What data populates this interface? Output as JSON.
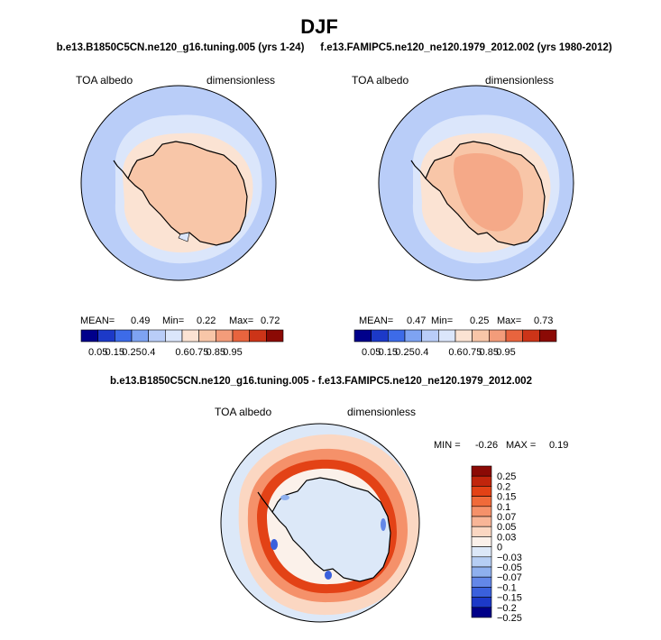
{
  "chart_data": {
    "type": "polar_contour_map",
    "title": "DJF",
    "subplots": [
      {
        "id": "model",
        "title": "b.e13.B1850C5CN.ne120_g16.tuning.005 (yrs 1-24)",
        "variable": "TOA albedo",
        "units": "dimensionless",
        "stats": {
          "mean_label": "MEAN=",
          "mean": "0.49",
          "min_label": "Min=",
          "min": "0.22",
          "max_label": "Max=",
          "max": "0.72"
        },
        "colorbar_ticks": [
          "0.05",
          "0.15",
          "0.25",
          "0.4",
          "0.6",
          "0.75",
          "0.85",
          "0.95"
        ]
      },
      {
        "id": "obs",
        "title": "f.e13.FAMIPC5.ne120_ne120.1979_2012.002 (yrs 1980-2012)",
        "variable": "TOA albedo",
        "units": "dimensionless",
        "stats": {
          "mean_label": "MEAN=",
          "mean": "0.47",
          "min_label": "Min=",
          "min": "0.25",
          "max_label": "Max=",
          "max": "0.73"
        },
        "colorbar_ticks": [
          "0.05",
          "0.15",
          "0.25",
          "0.4",
          "0.6",
          "0.75",
          "0.85",
          "0.95"
        ]
      },
      {
        "id": "diff",
        "title": "b.e13.B1850C5CN.ne120_g16.tuning.005 - f.e13.FAMIPC5.ne120_ne120.1979_2012.002",
        "variable": "TOA albedo",
        "units": "dimensionless",
        "stats": {
          "min_label": "MIN =",
          "min": "-0.26",
          "max_label": "MAX =",
          "max": "0.19"
        },
        "colorbar_ticks": [
          "0.25",
          "0.2",
          "0.15",
          "0.1",
          "0.07",
          "0.05",
          "0.03",
          "0",
          "−0.03",
          "−0.05",
          "−0.07",
          "−0.1",
          "−0.15",
          "−0.2",
          "−0.25"
        ]
      }
    ]
  },
  "colors": {
    "abs_scale": [
      "#00008b",
      "#1c39c8",
      "#3d6be8",
      "#7ea3f2",
      "#b9cdf8",
      "#dbe6fb",
      "#fbe3d3",
      "#f8c6a8",
      "#f39c7a",
      "#e8643e",
      "#cc3418",
      "#8b0a05"
    ],
    "diff_scale": [
      "#8b0a05",
      "#c1250c",
      "#e34216",
      "#f06a3a",
      "#f5916a",
      "#f8b597",
      "#fbd7c2",
      "#fbf1ea",
      "#dce8f8",
      "#b6cef4",
      "#8fb0ee",
      "#6387e8",
      "#3a60dc",
      "#1c39c8",
      "#000088"
    ]
  }
}
